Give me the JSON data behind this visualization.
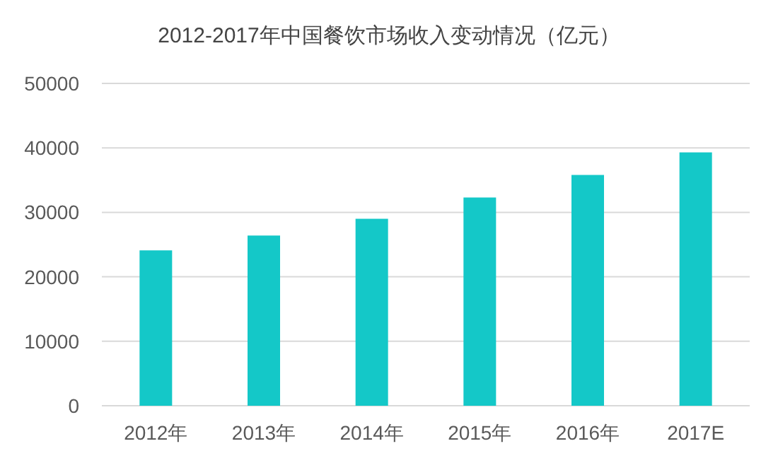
{
  "chart_data": {
    "type": "bar",
    "title": "2012-2017年中国餐饮市场收入变动情况（亿元）",
    "categories": [
      "2012年",
      "2013年",
      "2014年",
      "2015年",
      "2016年",
      "2017E"
    ],
    "series": [
      {
        "color": "#14c8c8",
        "values": [
          24100,
          26400,
          29000,
          32300,
          35800,
          39300
        ]
      }
    ],
    "ylim": [
      0,
      50000
    ],
    "yticks": [
      0,
      10000,
      20000,
      30000,
      40000,
      50000
    ],
    "grid": "y"
  }
}
